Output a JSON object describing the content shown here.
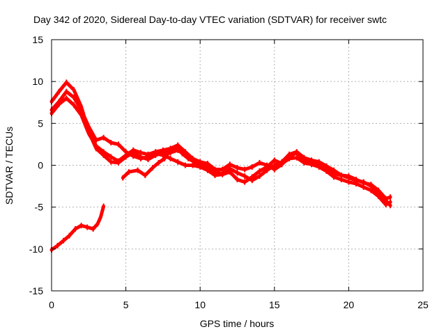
{
  "chart_data": {
    "type": "scatter",
    "title": "Day 342 of 2020, Sidereal Day-to-day VTEC variation (SDTVAR) for receiver swtc",
    "xlabel": "GPS time / hours",
    "ylabel": "SDTVAR / TECUs",
    "xlim": [
      0,
      25
    ],
    "ylim": [
      -15,
      15
    ],
    "xticks": [
      0,
      5,
      10,
      15,
      20,
      25
    ],
    "yticks": [
      -15,
      -10,
      -5,
      0,
      5,
      10,
      15
    ],
    "grid": true,
    "colors": {
      "series": "#ff0000",
      "grid": "#b0b0b0",
      "axis": "#000000"
    },
    "series": [
      {
        "name": "track-1",
        "points": [
          [
            0,
            6.2
          ],
          [
            0.5,
            7.3
          ],
          [
            1.0,
            8.0
          ],
          [
            1.5,
            7.2
          ],
          [
            2.0,
            6.0
          ],
          [
            2.5,
            3.8
          ],
          [
            3.0,
            2.3
          ],
          [
            3.5,
            1.6
          ],
          [
            4.0,
            1.0
          ],
          [
            4.5,
            0.5
          ],
          [
            5.0,
            1.2
          ],
          [
            5.5,
            1.8
          ],
          [
            6.0,
            1.5
          ],
          [
            6.5,
            1.3
          ],
          [
            7.0,
            1.6
          ],
          [
            7.5,
            1.8
          ],
          [
            8.0,
            2.0
          ],
          [
            8.5,
            2.4
          ],
          [
            9.0,
            1.6
          ],
          [
            9.5,
            0.8
          ],
          [
            10.0,
            0.4
          ],
          [
            10.5,
            0.2
          ],
          [
            11.0,
            -0.5
          ],
          [
            11.5,
            -0.5
          ],
          [
            12.0,
            0.1
          ],
          [
            12.5,
            -0.3
          ],
          [
            13.0,
            -0.5
          ],
          [
            13.5,
            -0.2
          ],
          [
            14.0,
            0.3
          ],
          [
            14.5,
            0.0
          ],
          [
            15.0,
            -0.5
          ],
          [
            15.5,
            0.1
          ],
          [
            16.0,
            1.0
          ],
          [
            16.5,
            1.5
          ],
          [
            17.0,
            0.6
          ],
          [
            17.5,
            0.4
          ],
          [
            18.0,
            0.2
          ],
          [
            18.5,
            -0.3
          ],
          [
            19.0,
            -1.0
          ],
          [
            19.5,
            -1.2
          ],
          [
            20.0,
            -1.5
          ],
          [
            20.5,
            -1.8
          ],
          [
            21.0,
            -2.0
          ],
          [
            21.5,
            -2.5
          ],
          [
            22.0,
            -3.3
          ],
          [
            22.5,
            -4.2
          ],
          [
            22.8,
            -4.8
          ]
        ]
      },
      {
        "name": "track-2",
        "points": [
          [
            0,
            7.6
          ],
          [
            0.5,
            8.8
          ],
          [
            1.0,
            9.9
          ],
          [
            1.5,
            9.0
          ],
          [
            2.0,
            7.0
          ],
          [
            2.5,
            4.0
          ],
          [
            3.0,
            2.0
          ],
          [
            3.5,
            1.2
          ],
          [
            4.0,
            0.4
          ],
          [
            4.5,
            0.3
          ],
          [
            5.0,
            1.0
          ],
          [
            5.5,
            1.5
          ],
          [
            6.0,
            1.0
          ],
          [
            6.5,
            0.7
          ],
          [
            7.0,
            1.2
          ],
          [
            7.5,
            1.5
          ],
          [
            8.0,
            1.5
          ],
          [
            8.5,
            1.8
          ],
          [
            9.0,
            1.2
          ],
          [
            9.5,
            0.6
          ],
          [
            10.0,
            0.3
          ],
          [
            10.5,
            -0.2
          ],
          [
            11.0,
            -0.8
          ],
          [
            11.5,
            -1.0
          ],
          [
            12.0,
            -0.4
          ],
          [
            12.5,
            -0.9
          ],
          [
            13.0,
            -1.3
          ],
          [
            13.5,
            -1.8
          ],
          [
            14.0,
            -1.3
          ],
          [
            14.5,
            -0.6
          ],
          [
            15.0,
            0.0
          ],
          [
            15.5,
            0.4
          ],
          [
            16.0,
            1.3
          ],
          [
            16.5,
            1.6
          ],
          [
            17.0,
            0.9
          ],
          [
            17.5,
            0.6
          ],
          [
            18.0,
            0.4
          ],
          [
            18.5,
            -0.1
          ],
          [
            19.0,
            -0.6
          ],
          [
            19.5,
            -1.2
          ],
          [
            20.0,
            -1.3
          ],
          [
            20.5,
            -1.7
          ],
          [
            21.0,
            -2.1
          ],
          [
            21.5,
            -2.3
          ],
          [
            22.0,
            -3.0
          ],
          [
            22.5,
            -4.0
          ],
          [
            22.8,
            -3.8
          ]
        ]
      },
      {
        "name": "track-3",
        "points": [
          [
            0,
            6.6
          ],
          [
            0.5,
            7.6
          ],
          [
            1.0,
            8.8
          ],
          [
            1.5,
            8.1
          ],
          [
            2.0,
            6.6
          ],
          [
            2.5,
            4.6
          ],
          [
            3.0,
            3.0
          ],
          [
            3.5,
            3.3
          ],
          [
            4.0,
            2.7
          ],
          [
            4.5,
            2.5
          ],
          [
            5.0,
            1.6
          ],
          [
            5.5,
            1.1
          ],
          [
            6.0,
            0.8
          ],
          [
            6.5,
            1.0
          ],
          [
            7.0,
            1.4
          ],
          [
            7.5,
            1.2
          ],
          [
            8.0,
            0.8
          ],
          [
            8.5,
            0.4
          ],
          [
            9.0,
            0.0
          ],
          [
            9.5,
            0.0
          ],
          [
            10.0,
            -0.2
          ],
          [
            10.5,
            -0.6
          ],
          [
            11.0,
            -1.2
          ],
          [
            11.5,
            -1.1
          ],
          [
            12.0,
            -0.8
          ],
          [
            12.5,
            -1.7
          ],
          [
            13.0,
            -2.0
          ],
          [
            13.5,
            -1.4
          ],
          [
            14.0,
            -0.7
          ],
          [
            14.5,
            -0.2
          ],
          [
            15.0,
            0.6
          ],
          [
            15.5,
            0.2
          ],
          [
            16.0,
            0.8
          ],
          [
            16.5,
            0.9
          ],
          [
            17.0,
            0.3
          ],
          [
            17.5,
            0.1
          ],
          [
            18.0,
            -0.2
          ],
          [
            18.5,
            -0.7
          ],
          [
            19.0,
            -1.4
          ],
          [
            19.5,
            -1.7
          ],
          [
            20.0,
            -2.0
          ],
          [
            20.5,
            -2.2
          ],
          [
            21.0,
            -2.6
          ],
          [
            21.5,
            -3.0
          ],
          [
            22.0,
            -3.7
          ],
          [
            22.5,
            -4.7
          ],
          [
            22.8,
            -4.4
          ]
        ]
      },
      {
        "name": "track-4",
        "points": [
          [
            4.8,
            -1.5
          ],
          [
            5.2,
            -0.8
          ],
          [
            5.8,
            -0.6
          ],
          [
            6.3,
            -1.2
          ],
          [
            6.8,
            -0.3
          ],
          [
            7.2,
            0.3
          ],
          [
            7.6,
            0.8
          ],
          [
            8.0,
            1.8
          ],
          [
            8.4,
            2.2
          ],
          [
            8.8,
            1.4
          ],
          [
            9.2,
            0.8
          ],
          [
            9.6,
            0.4
          ],
          [
            10.0,
            0.0
          ],
          [
            10.5,
            -0.3
          ]
        ]
      },
      {
        "name": "track-5",
        "points": [
          [
            0,
            -10.1
          ],
          [
            0.4,
            -9.6
          ],
          [
            0.8,
            -9.0
          ],
          [
            1.2,
            -8.4
          ],
          [
            1.6,
            -7.6
          ],
          [
            2.0,
            -7.2
          ],
          [
            2.4,
            -7.4
          ],
          [
            2.8,
            -7.6
          ],
          [
            3.1,
            -7.0
          ],
          [
            3.3,
            -6.2
          ],
          [
            3.5,
            -4.9
          ]
        ]
      }
    ]
  }
}
